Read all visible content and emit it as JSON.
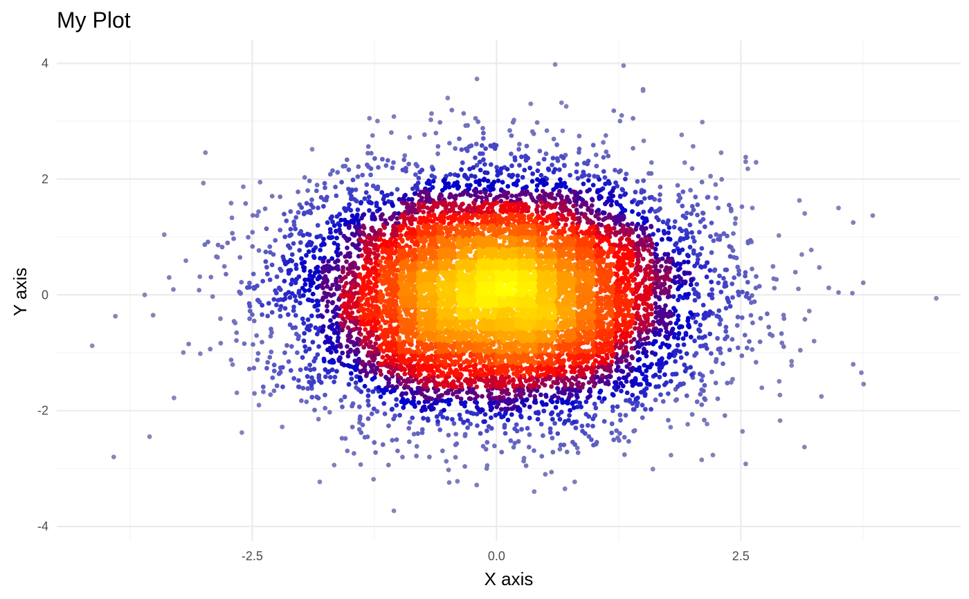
{
  "chart_data": {
    "type": "scatter",
    "title": "My Plot",
    "xlabel": "X axis",
    "ylabel": "Y axis",
    "xlim": [
      -4.5,
      4.75
    ],
    "ylim": [
      -4.25,
      4.4
    ],
    "x_ticks": [
      {
        "value": -2.5,
        "label": "-2.5"
      },
      {
        "value": 0.0,
        "label": "0.0"
      },
      {
        "value": 2.5,
        "label": "2.5"
      }
    ],
    "y_ticks": [
      {
        "value": -4,
        "label": "-4"
      },
      {
        "value": -2,
        "label": "-2"
      },
      {
        "value": 0,
        "label": "0"
      },
      {
        "value": 2,
        "label": "2"
      },
      {
        "value": 4,
        "label": "4"
      }
    ],
    "x_minor_gridlines": [
      -3.75,
      -1.25,
      1.25,
      3.75
    ],
    "y_minor_gridlines": [
      -3,
      -1,
      1,
      3
    ],
    "grid": true,
    "legend": "none",
    "color_scale": {
      "encoding": "point density",
      "colors": [
        "#8a8ab8",
        "#5a5ac4",
        "#0000cc",
        "#ff0000",
        "#ff8800",
        "#ffff00"
      ]
    },
    "distribution": {
      "shape": "bivariate normal",
      "n_points": 10000,
      "mean": [
        0,
        0
      ],
      "sd": [
        1,
        1
      ]
    },
    "outlier_points": [
      {
        "x": 0.6,
        "y": 3.98
      },
      {
        "x": 1.3,
        "y": 3.96
      },
      {
        "x": -0.2,
        "y": 3.73
      },
      {
        "x": 1.5,
        "y": 3.55
      },
      {
        "x": -0.5,
        "y": 3.4
      },
      {
        "x": 0.35,
        "y": 3.3
      },
      {
        "x": 1.2,
        "y": 3.18
      },
      {
        "x": -1.3,
        "y": 3.05
      },
      {
        "x": -1.05,
        "y": 3.08
      },
      {
        "x": -3.4,
        "y": 1.04
      },
      {
        "x": -3.0,
        "y": 1.93
      },
      {
        "x": -3.6,
        "y": 0.0
      },
      {
        "x": -3.35,
        "y": 0.3
      },
      {
        "x": -3.15,
        "y": -0.85
      },
      {
        "x": -3.3,
        "y": -1.78
      },
      {
        "x": -3.55,
        "y": -2.45
      },
      {
        "x": -3.9,
        "y": -0.37
      },
      {
        "x": 3.85,
        "y": 1.37
      },
      {
        "x": 3.5,
        "y": 1.5
      },
      {
        "x": 3.65,
        "y": 1.25
      },
      {
        "x": 3.4,
        "y": 0.12
      },
      {
        "x": 3.5,
        "y": 0.04
      },
      {
        "x": 3.65,
        "y": -1.2
      },
      {
        "x": 3.1,
        "y": 1.63
      },
      {
        "x": 4.5,
        "y": -0.06
      },
      {
        "x": 2.55,
        "y": 2.38
      },
      {
        "x": 2.55,
        "y": 2.3
      },
      {
        "x": 2.55,
        "y": -2.92
      },
      {
        "x": 2.1,
        "y": -2.85
      },
      {
        "x": 1.6,
        "y": -3.01
      },
      {
        "x": 0.7,
        "y": -3.35
      },
      {
        "x": -1.05,
        "y": -3.73
      },
      {
        "x": -0.4,
        "y": -3.22
      },
      {
        "x": 0.8,
        "y": -3.23
      },
      {
        "x": -0.1,
        "y": -3.0
      },
      {
        "x": 0.5,
        "y": -3.1
      },
      {
        "x": 2.9,
        "y": -1.73
      },
      {
        "x": 3.25,
        "y": -0.8
      },
      {
        "x": 3.2,
        "y": -0.28
      }
    ]
  }
}
